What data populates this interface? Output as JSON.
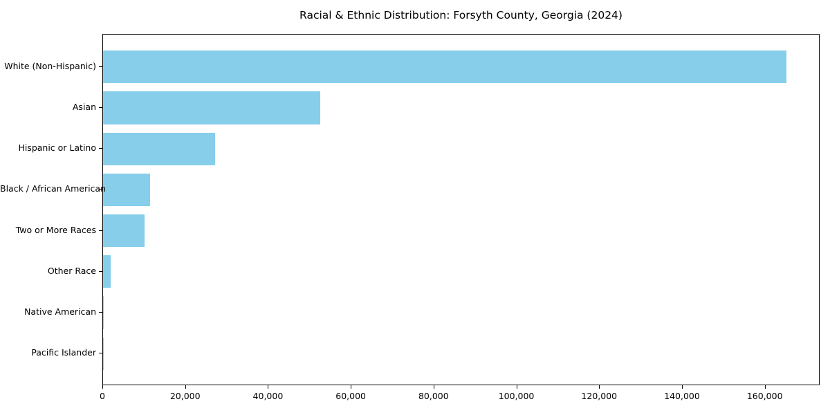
{
  "chart_data": {
    "type": "bar",
    "orientation": "horizontal",
    "title": "Racial & Ethnic Distribution: Forsyth County, Georgia (2024)",
    "xlabel": "",
    "ylabel": "",
    "categories": [
      "White (Non-Hispanic)",
      "Asian",
      "Hispanic or Latino",
      "Black / African American",
      "Two or More Races",
      "Other Race",
      "Native American",
      "Pacific Islander"
    ],
    "values": [
      165000,
      52500,
      27000,
      11300,
      10000,
      1800,
      150,
      60
    ],
    "xlim": [
      0,
      173250
    ],
    "x_ticks": [
      0,
      20000,
      40000,
      60000,
      80000,
      100000,
      120000,
      140000,
      160000
    ],
    "x_tick_labels": [
      "0",
      "20,000",
      "40,000",
      "60,000",
      "80,000",
      "100,000",
      "120,000",
      "140,000",
      "160,000"
    ],
    "bar_color": "#87CEEB",
    "bar_height_fraction": 0.8,
    "grid": false,
    "legend": null
  }
}
